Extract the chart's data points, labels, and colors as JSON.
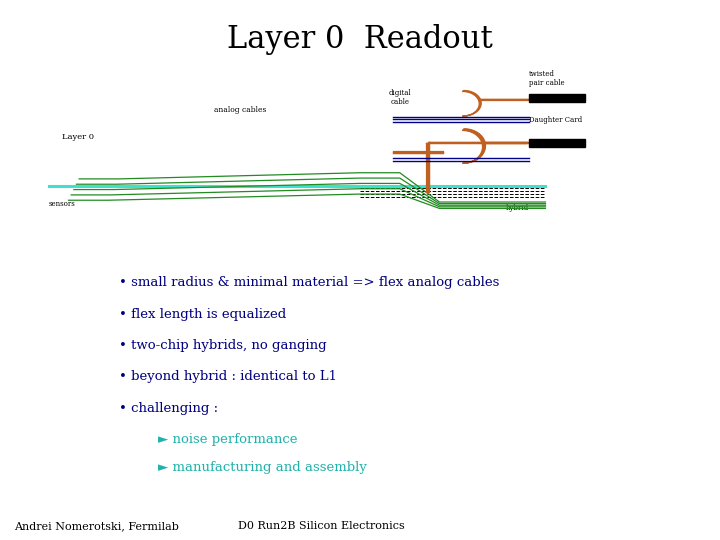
{
  "title": "Layer 0  Readout",
  "title_fontsize": 22,
  "title_font": "serif",
  "bg_color": "#ffffff",
  "bullets": [
    "small radius & minimal material => flex analog cables",
    "flex length is equalized",
    "two-chip hybrids, no ganging",
    "beyond hybrid : identical to L1",
    "challenging :"
  ],
  "sub_bullets": [
    "► noise performance",
    "► manufacturing and assembly"
  ],
  "bullet_color": "#000080",
  "sub_bullet_color": "#20B2AA",
  "bullet_fontsize": 9.5,
  "footer_left": "Andrei Nomerotski, Fermilab",
  "footer_right": "D0 Run2B Silicon Electronics",
  "footer_fontsize": 8,
  "green": "#228B22",
  "orange": "#C06020",
  "cyan": "#40E0D0",
  "dark_blue": "#00008B",
  "black": "#000000"
}
